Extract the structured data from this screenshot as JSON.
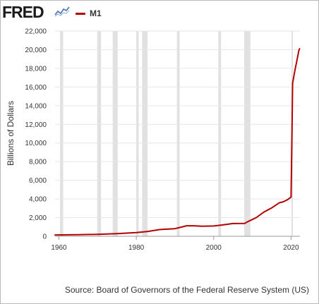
{
  "header": {
    "logo": "FRED",
    "series_label": "M1"
  },
  "colors": {
    "series": "#b30000",
    "recession": "#e1e1e1",
    "grid": "#e6e6e6"
  },
  "source_text": "Source: Board of Governors of the Federal Reserve System (US)",
  "chart_data": {
    "type": "line",
    "title": "",
    "xlabel": "",
    "ylabel": "Billions of Dollars",
    "xlim": [
      1959,
      2022.3
    ],
    "ylim": [
      0,
      22000
    ],
    "x_ticks": [
      1960,
      1980,
      2000,
      2020
    ],
    "x_tick_labels": [
      "1960",
      "1980",
      "2000",
      "2020"
    ],
    "y_ticks": [
      0,
      2000,
      4000,
      6000,
      8000,
      10000,
      12000,
      14000,
      16000,
      18000,
      20000,
      22000
    ],
    "y_tick_labels": [
      "0",
      "2,000",
      "4,000",
      "6,000",
      "8,000",
      "10,000",
      "12,000",
      "14,000",
      "16,000",
      "18,000",
      "20,000",
      "22,000"
    ],
    "grid": "horizontal",
    "legend": "top-left",
    "series": [
      {
        "name": "M1",
        "x": [
          1959,
          1965,
          1970,
          1975,
          1980,
          1983,
          1986,
          1987,
          1990,
          1992,
          1993,
          1995,
          1997,
          2000,
          2002,
          2005,
          2008,
          2009,
          2011,
          2013,
          2015,
          2017,
          2018,
          2019,
          2020,
          2020.2,
          2020.4,
          2021,
          2021.5,
          2022,
          2022.2
        ],
        "y": [
          140,
          170,
          215,
          290,
          400,
          520,
          720,
          750,
          820,
          1020,
          1130,
          1130,
          1070,
          1100,
          1200,
          1370,
          1380,
          1600,
          2000,
          2600,
          3050,
          3600,
          3700,
          3900,
          4200,
          10000,
          16400,
          17800,
          18800,
          19900,
          20100
        ]
      }
    ],
    "recessions": [
      [
        1960.3,
        1961.1
      ],
      [
        1969.9,
        1970.9
      ],
      [
        1973.9,
        1975.2
      ],
      [
        1980.0,
        1980.6
      ],
      [
        1981.5,
        1982.9
      ],
      [
        1990.5,
        1991.2
      ],
      [
        2001.2,
        2001.9
      ],
      [
        2007.9,
        2009.5
      ],
      [
        2020.1,
        2020.4
      ]
    ]
  }
}
